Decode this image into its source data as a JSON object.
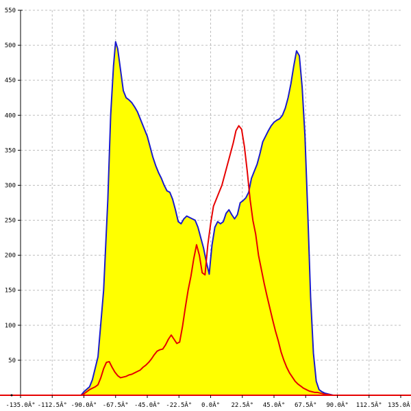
{
  "chart_data": {
    "type": "area",
    "title": "",
    "xlabel": "",
    "ylabel": "",
    "xlim": [
      -135,
      135
    ],
    "ylim": [
      0,
      550
    ],
    "grid": true,
    "legend": "none",
    "x_ticks": [
      {
        "value": -135,
        "label": "-135.0Â°"
      },
      {
        "value": -112.5,
        "label": "-112.5Â°"
      },
      {
        "value": -90,
        "label": "-90.0Â°"
      },
      {
        "value": -67.5,
        "label": "-67.5Â°"
      },
      {
        "value": -45,
        "label": "-45.0Â°"
      },
      {
        "value": -22.5,
        "label": "-22.5Â°"
      },
      {
        "value": 0,
        "label": "0.0Â°"
      },
      {
        "value": 22.5,
        "label": "22.5Â°"
      },
      {
        "value": 45,
        "label": "45.0Â°"
      },
      {
        "value": 67.5,
        "label": "67.5Â°"
      },
      {
        "value": 90,
        "label": "90.0Â°"
      },
      {
        "value": 112.5,
        "label": "112.5Â°"
      },
      {
        "value": 135,
        "label": "135.0Â°"
      }
    ],
    "y_ticks": [
      {
        "value": 50,
        "label": "50"
      },
      {
        "value": 100,
        "label": "100"
      },
      {
        "value": 150,
        "label": "150"
      },
      {
        "value": 200,
        "label": "200"
      },
      {
        "value": 250,
        "label": "250"
      },
      {
        "value": 300,
        "label": "300"
      },
      {
        "value": 350,
        "label": "350"
      },
      {
        "value": 400,
        "label": "400"
      },
      {
        "value": 450,
        "label": "450"
      },
      {
        "value": 500,
        "label": "500"
      },
      {
        "value": 550,
        "label": "550"
      }
    ],
    "series": [
      {
        "color": "#1a1acc",
        "fill": "#ffff00",
        "style": "filled-area",
        "x": [
          -135,
          -92,
          -90,
          -86,
          -84,
          -80,
          -76,
          -73,
          -71,
          -69,
          -67.5,
          -66,
          -64,
          -62,
          -60,
          -58,
          -56,
          -54,
          -52,
          -49,
          -47,
          -45,
          -43,
          -41,
          -39,
          -37,
          -35,
          -33,
          -31,
          -29,
          -27,
          -25,
          -23,
          -21,
          -19,
          -17,
          -15,
          -13,
          -11,
          -9,
          -7,
          -5,
          -3,
          -1,
          0,
          1,
          3,
          5,
          7,
          9,
          11,
          13,
          15,
          17,
          19,
          21,
          23,
          25,
          27,
          29,
          31,
          33,
          35,
          37,
          39,
          41,
          43,
          45,
          47,
          49,
          51,
          53,
          55,
          57,
          59,
          61,
          63,
          65,
          67,
          69,
          71,
          73,
          75,
          77,
          79,
          81,
          83,
          85,
          87,
          89,
          90,
          92,
          135
        ],
        "y": [
          0,
          0,
          5,
          12,
          22,
          55,
          150,
          280,
          400,
          470,
          505,
          495,
          465,
          435,
          425,
          422,
          418,
          412,
          405,
          390,
          380,
          370,
          355,
          340,
          328,
          318,
          310,
          300,
          292,
          290,
          280,
          265,
          248,
          245,
          252,
          256,
          254,
          252,
          250,
          240,
          225,
          210,
          190,
          173,
          195,
          215,
          240,
          248,
          245,
          248,
          260,
          265,
          258,
          252,
          258,
          275,
          278,
          282,
          290,
          310,
          320,
          330,
          345,
          362,
          370,
          378,
          385,
          390,
          393,
          395,
          400,
          410,
          425,
          445,
          470,
          492,
          485,
          440,
          370,
          260,
          140,
          60,
          20,
          8,
          5,
          3,
          2,
          1,
          0,
          0,
          0,
          0,
          0
        ]
      },
      {
        "color": "#e60000",
        "style": "line",
        "x": [
          -135,
          -92,
          -90,
          -88,
          -86,
          -84,
          -82,
          -80,
          -78,
          -76,
          -74,
          -72,
          -70,
          -68,
          -66,
          -64,
          -62,
          -60,
          -58,
          -56,
          -54,
          -52,
          -50,
          -48,
          -46,
          -44,
          -42,
          -40,
          -38,
          -36,
          -34,
          -32,
          -30,
          -28,
          -26,
          -24,
          -22,
          -20,
          -18,
          -16,
          -14,
          -12,
          -10,
          -8,
          -6,
          -4,
          -2,
          0,
          2,
          4,
          6,
          8,
          10,
          12,
          14,
          16,
          18,
          20,
          22,
          24,
          26,
          28,
          30,
          32,
          34,
          36,
          38,
          40,
          42,
          44,
          46,
          48,
          50,
          52,
          54,
          56,
          58,
          60,
          62,
          64,
          66,
          68,
          70,
          72,
          74,
          76,
          78,
          80,
          82,
          84,
          86,
          88,
          90,
          92,
          135
        ],
        "y": [
          0,
          0,
          2,
          5,
          8,
          10,
          12,
          15,
          25,
          38,
          47,
          48,
          40,
          33,
          28,
          25,
          26,
          27,
          29,
          30,
          32,
          34,
          36,
          40,
          43,
          47,
          52,
          58,
          63,
          65,
          66,
          72,
          80,
          86,
          80,
          74,
          76,
          98,
          125,
          150,
          170,
          195,
          215,
          200,
          175,
          172,
          215,
          245,
          270,
          280,
          290,
          300,
          315,
          330,
          345,
          360,
          378,
          385,
          380,
          355,
          320,
          280,
          250,
          230,
          200,
          180,
          160,
          142,
          125,
          108,
          92,
          78,
          62,
          50,
          40,
          32,
          26,
          20,
          16,
          13,
          10,
          8,
          6,
          5,
          4,
          4,
          3,
          2,
          1,
          1,
          0,
          0,
          0,
          0,
          0
        ]
      }
    ]
  }
}
